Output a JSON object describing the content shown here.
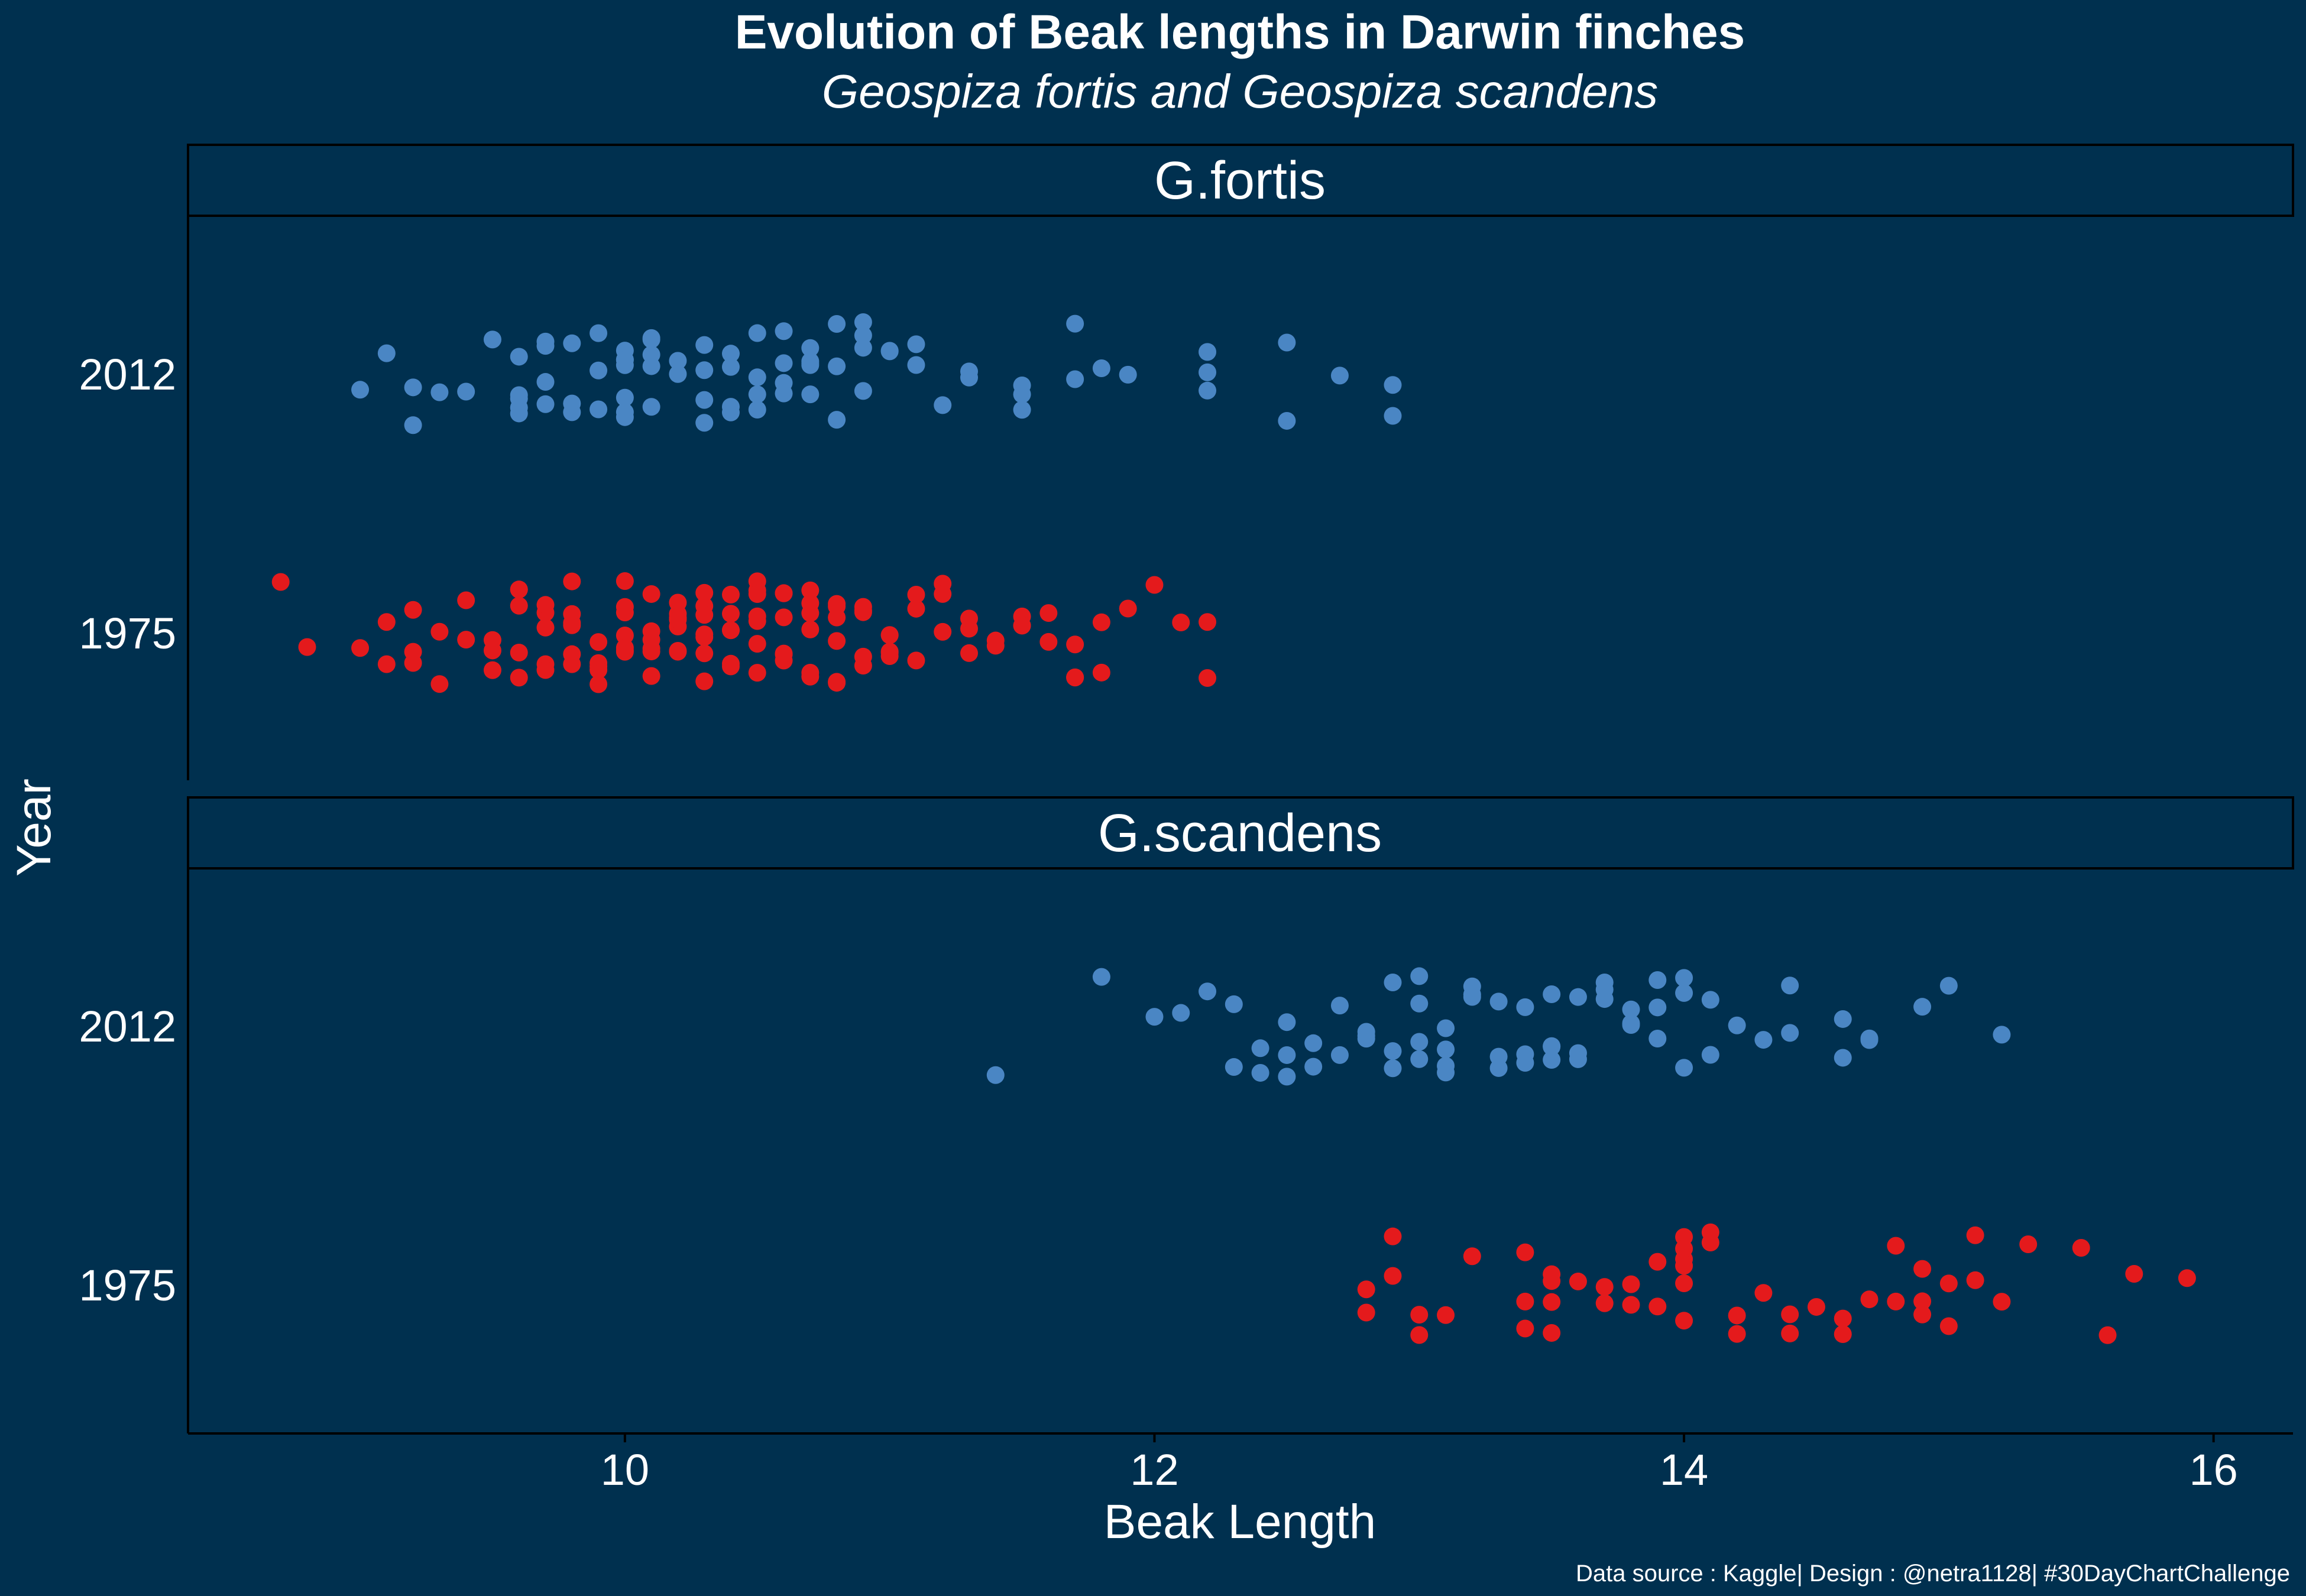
{
  "chart_data": {
    "type": "scatter",
    "title": "Evolution of Beak lengths in Darwin finches",
    "subtitle": "Geospiza fortis and Geospiza scandens",
    "xlabel": "Beak Length",
    "ylabel": "Year",
    "caption": "Data source : Kaggle| Design : @netra1128| #30DayChartChallenge",
    "xlim": [
      8.35,
      16.3
    ],
    "x_ticks": [
      10,
      12,
      14,
      16
    ],
    "y_categories": [
      "1975",
      "2012"
    ],
    "grid": false,
    "colors": {
      "1975": "#e41a1c",
      "2012": "#4a86c4",
      "background": "#00304f"
    },
    "panels": [
      {
        "name": "G.fortis",
        "series": [
          {
            "year": "2012",
            "values": [
              9.0,
              9.1,
              9.2,
              9.2,
              9.3,
              9.4,
              9.5,
              9.6,
              9.6,
              9.6,
              9.6,
              9.6,
              9.7,
              9.7,
              9.7,
              9.7,
              9.8,
              9.8,
              9.8,
              9.9,
              9.9,
              9.9,
              10.0,
              10.0,
              10.0,
              10.0,
              10.0,
              10.0,
              10.0,
              10.1,
              10.1,
              10.1,
              10.1,
              10.1,
              10.2,
              10.2,
              10.3,
              10.3,
              10.3,
              10.3,
              10.4,
              10.4,
              10.4,
              10.4,
              10.5,
              10.5,
              10.5,
              10.5,
              10.6,
              10.6,
              10.6,
              10.6,
              10.7,
              10.7,
              10.7,
              10.7,
              10.7,
              10.8,
              10.8,
              10.8,
              10.9,
              10.9,
              10.9,
              10.9,
              11.0,
              11.0,
              11.1,
              11.1,
              11.2,
              11.3,
              11.3,
              11.5,
              11.5,
              11.5,
              11.7,
              11.7,
              11.8,
              11.9,
              12.2,
              12.2,
              12.2,
              12.5,
              12.5,
              12.7,
              12.9,
              12.9
            ]
          },
          {
            "year": "1975",
            "values": [
              8.7,
              8.8,
              9.0,
              9.1,
              9.1,
              9.2,
              9.2,
              9.2,
              9.3,
              9.3,
              9.4,
              9.4,
              9.5,
              9.5,
              9.5,
              9.6,
              9.6,
              9.6,
              9.6,
              9.6,
              9.7,
              9.7,
              9.7,
              9.7,
              9.7,
              9.8,
              9.8,
              9.8,
              9.8,
              9.8,
              9.8,
              9.9,
              9.9,
              9.9,
              9.9,
              9.9,
              10.0,
              10.0,
              10.0,
              10.0,
              10.0,
              10.0,
              10.0,
              10.1,
              10.1,
              10.1,
              10.1,
              10.1,
              10.1,
              10.2,
              10.2,
              10.2,
              10.2,
              10.2,
              10.2,
              10.2,
              10.3,
              10.3,
              10.3,
              10.3,
              10.3,
              10.3,
              10.3,
              10.4,
              10.4,
              10.4,
              10.4,
              10.4,
              10.4,
              10.5,
              10.5,
              10.5,
              10.5,
              10.5,
              10.5,
              10.5,
              10.6,
              10.6,
              10.6,
              10.6,
              10.6,
              10.6,
              10.7,
              10.7,
              10.7,
              10.7,
              10.7,
              10.7,
              10.8,
              10.8,
              10.8,
              10.8,
              10.8,
              10.8,
              10.9,
              10.9,
              10.9,
              10.9,
              10.9,
              11.0,
              11.0,
              11.0,
              11.0,
              11.0,
              11.1,
              11.1,
              11.1,
              11.2,
              11.2,
              11.2,
              11.3,
              11.3,
              11.3,
              11.4,
              11.4,
              11.5,
              11.5,
              11.5,
              11.6,
              11.6,
              11.7,
              11.7,
              11.7,
              11.8,
              11.8,
              11.9,
              12.0,
              12.1,
              12.2,
              12.2
            ]
          }
        ]
      },
      {
        "name": "G.scandens",
        "series": [
          {
            "year": "2012",
            "values": [
              11.4,
              11.8,
              12.0,
              12.1,
              12.2,
              12.3,
              12.3,
              12.4,
              12.4,
              12.5,
              12.5,
              12.5,
              12.6,
              12.6,
              12.7,
              12.7,
              12.8,
              12.8,
              12.8,
              12.9,
              12.9,
              12.9,
              13.0,
              13.0,
              13.0,
              13.0,
              13.1,
              13.1,
              13.1,
              13.1,
              13.2,
              13.2,
              13.2,
              13.3,
              13.3,
              13.3,
              13.4,
              13.4,
              13.4,
              13.5,
              13.5,
              13.5,
              13.5,
              13.6,
              13.6,
              13.6,
              13.7,
              13.7,
              13.7,
              13.8,
              13.8,
              13.8,
              13.9,
              13.9,
              13.9,
              14.0,
              14.0,
              14.0,
              14.1,
              14.1,
              14.2,
              14.3,
              14.4,
              14.4,
              14.6,
              14.6,
              14.7,
              14.7,
              14.9,
              15.0,
              15.2
            ]
          },
          {
            "year": "1975",
            "values": [
              12.8,
              12.8,
              12.9,
              12.9,
              13.0,
              13.0,
              13.1,
              13.2,
              13.4,
              13.4,
              13.4,
              13.5,
              13.5,
              13.5,
              13.5,
              13.6,
              13.7,
              13.7,
              13.8,
              13.8,
              13.9,
              13.9,
              14.0,
              14.0,
              14.0,
              14.0,
              14.0,
              14.0,
              14.1,
              14.1,
              14.2,
              14.2,
              14.3,
              14.4,
              14.4,
              14.5,
              14.6,
              14.6,
              14.7,
              14.8,
              14.8,
              14.9,
              14.9,
              14.9,
              15.0,
              15.0,
              15.1,
              15.1,
              15.2,
              15.3,
              15.5,
              15.6,
              15.7,
              15.9
            ]
          }
        ]
      }
    ]
  }
}
